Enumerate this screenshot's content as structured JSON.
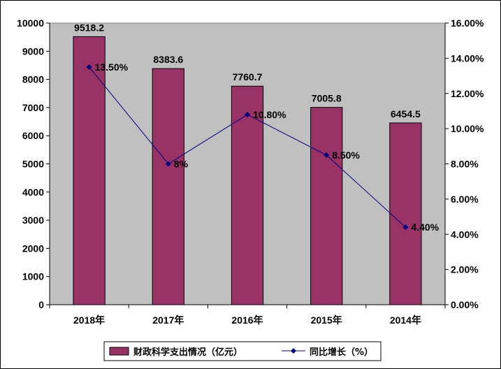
{
  "chart_data": {
    "type": "bar",
    "categories": [
      "2018年",
      "2017年",
      "2016年",
      "2015年",
      "2014年"
    ],
    "series": [
      {
        "name": "财政科学支出情况（亿元）",
        "type": "bar",
        "axis": "left",
        "values": [
          9518.2,
          8383.6,
          7760.7,
          7005.8,
          6454.5
        ],
        "labels": [
          "9518.2",
          "8383.6",
          "7760.7",
          "7005.8",
          "6454.5"
        ],
        "color": "#993366"
      },
      {
        "name": "同比增长（%）",
        "type": "line",
        "axis": "right",
        "values": [
          13.5,
          8,
          10.8,
          8.5,
          4.4
        ],
        "labels": [
          "13.50%",
          "8%",
          "10.80%",
          "8.50%",
          "4.40%"
        ],
        "color": "#000080"
      }
    ],
    "y_left": {
      "ylim": [
        0,
        10000
      ],
      "ticks": [
        "0",
        "1000",
        "2000",
        "3000",
        "4000",
        "5000",
        "6000",
        "7000",
        "8000",
        "9000",
        "10000"
      ]
    },
    "y_right": {
      "ylim": [
        0,
        16
      ],
      "ticks": [
        "0.00%",
        "2.00%",
        "4.00%",
        "6.00%",
        "8.00%",
        "10.00%",
        "12.00%",
        "14.00%",
        "16.00%"
      ]
    },
    "plot_background": "#c0c0c0",
    "grid": false,
    "legend_position": "bottom"
  }
}
